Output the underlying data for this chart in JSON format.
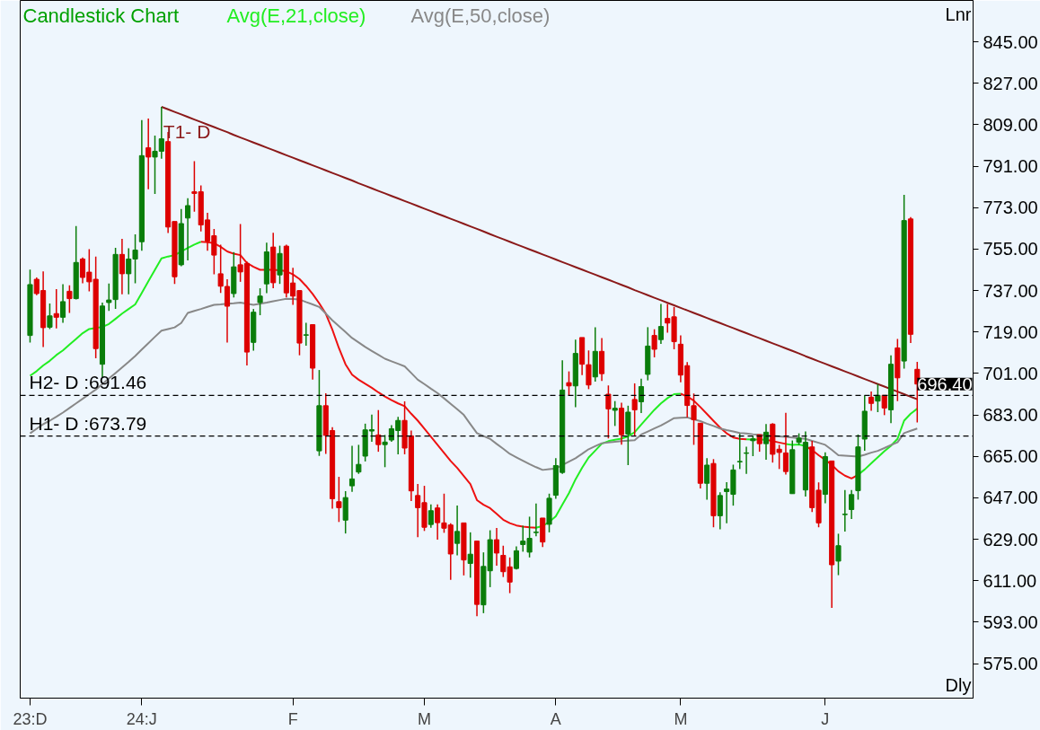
{
  "chart_data": {
    "type": "candlestick",
    "title": "Candlestick Chart",
    "legend": "top left",
    "categories": [
      "23:D",
      null,
      null,
      null,
      null,
      null,
      null,
      null,
      null,
      null,
      null,
      null,
      null,
      null,
      null,
      null,
      null,
      "24:J",
      null,
      null,
      null,
      null,
      null,
      null,
      null,
      null,
      null,
      null,
      null,
      null,
      null,
      null,
      null,
      null,
      null,
      null,
      null,
      null,
      null,
      null,
      "F",
      null,
      null,
      null,
      null,
      null,
      null,
      null,
      null,
      null,
      null,
      null,
      null,
      null,
      null,
      null,
      null,
      null,
      null,
      null,
      "M",
      null,
      null,
      null,
      null,
      null,
      null,
      null,
      null,
      null,
      null,
      null,
      null,
      null,
      null,
      null,
      null,
      null,
      null,
      null,
      "A",
      null,
      null,
      null,
      null,
      null,
      null,
      null,
      null,
      null,
      null,
      null,
      null,
      null,
      null,
      null,
      null,
      null,
      null,
      "M",
      null,
      null,
      null,
      null,
      null,
      null,
      null,
      null,
      null,
      null,
      null,
      null,
      null,
      null,
      null,
      null,
      null,
      null,
      null,
      null,
      null,
      "J",
      null,
      null,
      null,
      null,
      null,
      null,
      null,
      null,
      null,
      null,
      null,
      null,
      null,
      null
    ],
    "ohlc": [
      [
        717.5,
        746.1,
        714.4,
        739.6
      ],
      [
        741.9,
        742.7,
        735,
        735.7
      ],
      [
        737,
        745.3,
        712.5,
        720.9
      ],
      [
        721.1,
        731.4,
        720.3,
        726
      ],
      [
        727,
        737.6,
        720.6,
        725.4
      ],
      [
        725.4,
        739.8,
        723,
        732.2
      ],
      [
        736.7,
        739.3,
        727.3,
        733.5
      ],
      [
        733.5,
        765,
        733.1,
        749.2
      ],
      [
        750.7,
        751.4,
        740.2,
        742.7
      ],
      [
        745,
        755,
        736.7,
        740.8
      ],
      [
        741.9,
        751.8,
        707.6,
        711.8
      ],
      [
        705,
        731.8,
        699.4,
        730.3
      ],
      [
        731.8,
        740.1,
        728.2,
        732.9
      ],
      [
        733.1,
        755.6,
        729,
        752.7
      ],
      [
        752.7,
        759.5,
        735.4,
        744.3
      ],
      [
        744.3,
        755.4,
        735.4,
        750.7
      ],
      [
        750.7,
        761.4,
        740.2,
        754.6
      ],
      [
        758.2,
        811,
        754.3,
        795.6
      ],
      [
        799,
        811.7,
        781,
        795
      ],
      [
        795,
        804.3,
        779,
        797.5
      ],
      [
        797.5,
        816.8,
        794.3,
        802.9
      ],
      [
        801.7,
        805.9,
        762,
        764.6
      ],
      [
        767,
        767,
        739.9,
        743
      ],
      [
        748.2,
        772.4,
        747.6,
        766.1
      ],
      [
        768.5,
        777.1,
        750.1,
        773.9
      ],
      [
        779.9,
        793.2,
        771.3,
        779.2
      ],
      [
        779.9,
        782.7,
        762.7,
        765.5
      ],
      [
        767.7,
        770.8,
        754.3,
        758.5
      ],
      [
        760.8,
        763.8,
        744.1,
        752.4
      ],
      [
        744.3,
        756.9,
        736,
        738.9
      ],
      [
        738.8,
        741.9,
        714.4,
        730.2
      ],
      [
        735.7,
        753.7,
        734,
        747.3
      ],
      [
        748.2,
        765.9,
        740.8,
        745.1
      ],
      [
        748.8,
        749.6,
        704.5,
        710.3
      ],
      [
        714.5,
        729,
        710.9,
        727.6
      ],
      [
        731.8,
        738,
        726.3,
        734.6
      ],
      [
        739.9,
        757.8,
        735.9,
        753.8
      ],
      [
        755.9,
        762.1,
        738,
        740.4
      ],
      [
        743.8,
        756.5,
        739.9,
        753.1
      ],
      [
        756.3,
        756.9,
        734,
        736
      ],
      [
        740.3,
        746.9,
        730.8,
        734.6
      ],
      [
        737,
        737,
        708.9,
        714.2
      ],
      [
        717.6,
        723,
        713.1,
        717.8
      ],
      [
        722.2,
        722.2,
        698.3,
        703.3
      ],
      [
        667.4,
        702.5,
        665.2,
        687
      ],
      [
        687,
        692.4,
        666.1,
        674.1
      ],
      [
        676.2,
        677.7,
        642.3,
        646.6
      ],
      [
        645.3,
        656.1,
        636.5,
        642.7
      ],
      [
        637.3,
        649.9,
        631.5,
        647.1
      ],
      [
        652.2,
        669.6,
        649.6,
        655.2
      ],
      [
        658.2,
        670,
        657.4,
        661.5
      ],
      [
        665.1,
        679.2,
        662.8,
        676.5
      ],
      [
        676,
        683.1,
        671.3,
        676.6
      ],
      [
        674.3,
        685.1,
        667,
        670.1
      ],
      [
        670.1,
        674.3,
        660.3,
        671.2
      ],
      [
        672.1,
        678.5,
        671.3,
        677
      ],
      [
        676.2,
        682.2,
        665.9,
        680.6
      ],
      [
        680.6,
        688.9,
        665.9,
        668.6
      ],
      [
        673.9,
        676.2,
        645.6,
        650
      ],
      [
        648,
        653,
        629.9,
        642.7
      ],
      [
        644.9,
        652.2,
        632.6,
        634.2
      ],
      [
        635.4,
        644.1,
        634,
        641.4
      ],
      [
        642.6,
        644.1,
        628.8,
        636.2
      ],
      [
        636.1,
        648.8,
        631.8,
        633.8
      ],
      [
        635.2,
        635.9,
        611.4,
        622.6
      ],
      [
        627.2,
        643.6,
        622,
        632.4
      ],
      [
        636.1,
        636.1,
        613.3,
        620
      ],
      [
        618.5,
        632,
        612.3,
        622.5
      ],
      [
        628.2,
        628.2,
        595.6,
        600.7
      ],
      [
        600.5,
        623.3,
        596.9,
        617.2
      ],
      [
        615.3,
        632.9,
        608.2,
        628.8
      ],
      [
        628.8,
        633.9,
        617.5,
        623
      ],
      [
        622,
        626.2,
        612.6,
        614.9
      ],
      [
        617,
        621.1,
        605.6,
        610.4
      ],
      [
        616.3,
        625.9,
        615.9,
        624
      ],
      [
        626.7,
        634.9,
        623.6,
        628.2
      ],
      [
        623.4,
        638.8,
        621.1,
        629.4
      ],
      [
        631.9,
        644.5,
        630.3,
        632.1
      ],
      [
        638.2,
        638.2,
        625.6,
        627.8
      ],
      [
        635.5,
        648.8,
        632,
        646.8
      ],
      [
        648.1,
        664.2,
        646.6,
        661
      ],
      [
        658,
        706.7,
        657.4,
        693.8
      ],
      [
        697,
        701.9,
        691.6,
        695.6
      ],
      [
        695.6,
        715.7,
        686.3,
        709.7
      ],
      [
        716.6,
        716.6,
        700.3,
        705
      ],
      [
        704.8,
        711,
        694.2,
        696
      ],
      [
        699.5,
        721.1,
        697.5,
        710.6
      ],
      [
        710.6,
        716.4,
        697.8,
        700.9
      ],
      [
        692,
        695.8,
        672.8,
        685.6
      ],
      [
        685,
        689,
        678.2,
        685.9
      ],
      [
        685.9,
        688.3,
        670.1,
        674.4
      ],
      [
        674.7,
        687,
        661.2,
        684.2
      ],
      [
        689.7,
        696.7,
        673.7,
        685.2
      ],
      [
        688.7,
        698.7,
        683.8,
        695.3
      ],
      [
        700.6,
        721.1,
        698,
        712.9
      ],
      [
        717.5,
        720.2,
        708,
        711.5
      ],
      [
        715.7,
        731.2,
        713.8,
        721.4
      ],
      [
        724.9,
        731.2,
        718.7,
        722.9
      ],
      [
        725.6,
        729.9,
        711.5,
        714.8
      ],
      [
        713.7,
        717.5,
        697.2,
        700.3
      ],
      [
        704.4,
        705.9,
        682,
        687.1
      ],
      [
        687,
        692.3,
        670,
        680.9
      ],
      [
        679.4,
        679.4,
        651.1,
        653.3
      ],
      [
        653.3,
        664.2,
        646.2,
        661.2
      ],
      [
        661.9,
        663.8,
        634.2,
        639.2
      ],
      [
        639.2,
        649.4,
        633.3,
        648
      ],
      [
        649.7,
        653.8,
        635.9,
        650.8
      ],
      [
        648.5,
        661.4,
        643.6,
        659.1
      ],
      [
        662.6,
        674.8,
        659.5,
        662.8
      ],
      [
        666.3,
        669.2,
        657.4,
        666.5
      ],
      [
        671.8,
        673.9,
        665.1,
        672.6
      ],
      [
        674.4,
        674.4,
        667,
        670.5
      ],
      [
        670.5,
        679,
        663.5,
        675.5
      ],
      [
        679,
        679.4,
        662.3,
        665.9
      ],
      [
        668.1,
        670,
        659.5,
        666.7
      ],
      [
        666.5,
        683.9,
        657.1,
        658.4
      ],
      [
        648.8,
        671.9,
        648.8,
        667.9
      ],
      [
        671.1,
        675,
        670,
        672.9
      ],
      [
        650.4,
        675.8,
        647.5,
        671.1
      ],
      [
        669.1,
        671.7,
        640.8,
        642.7
      ],
      [
        650.3,
        653.7,
        634.2,
        636.1
      ],
      [
        648.5,
        666.8,
        644.6,
        664.9
      ],
      [
        663,
        663,
        599.2,
        617.9
      ],
      [
        619.5,
        631.4,
        613.4,
        626.2
      ],
      [
        639.7,
        650.4,
        632.3,
        639.9
      ],
      [
        641.9,
        650.4,
        637.8,
        648.4
      ],
      [
        650.1,
        674.5,
        646.2,
        669.1
      ],
      [
        672.5,
        691.5,
        667.4,
        684.6
      ],
      [
        690.7,
        693.2,
        684.8,
        688
      ],
      [
        689,
        696.4,
        684.2,
        691.5
      ],
      [
        691.5,
        691.5,
        682.9,
        686
      ],
      [
        685.2,
        708.9,
        679.4,
        705
      ],
      [
        712.1,
        716,
        689,
        699.1
      ],
      [
        706.4,
        778.6,
        703.1,
        767.4
      ],
      [
        768.1,
        768.9,
        714.2,
        718
      ],
      [
        702.8,
        706,
        679.7,
        696.4
      ]
    ],
    "series": [
      {
        "name": "Avg(E,21,close)",
        "type": "line",
        "color": "#22ee22",
        "values": [
          700,
          702,
          704.5,
          706.5,
          709,
          711,
          713.5,
          716,
          718.5,
          720.3,
          720.8,
          721.2,
          722.5,
          724.7,
          727,
          729,
          731,
          736,
          741,
          746,
          751,
          751.8,
          752.4,
          754,
          755.5,
          757,
          758.2,
          null,
          null,
          null,
          null,
          null,
          null,
          null,
          null,
          null,
          null,
          null,
          null,
          null,
          null,
          null,
          null,
          null,
          null,
          null,
          null,
          null,
          null,
          null,
          null,
          null,
          null,
          null,
          null,
          null,
          null,
          null,
          null,
          null,
          null,
          null,
          null,
          null,
          null,
          null,
          null,
          null,
          null,
          null,
          null,
          null,
          null,
          null,
          null,
          null,
          null,
          634,
          634.8,
          636.5,
          639,
          644,
          649,
          655,
          660,
          664.5,
          667.5,
          670.5,
          671.6,
          672.2,
          672.7,
          673.7,
          675.5,
          678.8,
          682,
          685.2,
          688,
          690.3,
          692,
          692.2,
          null,
          null,
          null,
          null,
          null,
          null,
          null,
          null,
          null,
          672.4,
          672.3,
          672.3,
          672.2,
          null,
          null,
          670.4,
          670,
          670.2,
          669.5,
          null,
          null,
          null,
          null,
          null,
          null,
          null,
          657,
          659.3,
          662,
          664.6,
          667.2,
          669.6,
          672.6,
          680.5,
          683.5,
          685.7
        ]
      },
      {
        "type": "line",
        "color": "#ee1111",
        "values": [
          null,
          null,
          null,
          null,
          null,
          null,
          null,
          null,
          null,
          null,
          null,
          null,
          null,
          null,
          null,
          null,
          null,
          null,
          null,
          null,
          null,
          null,
          null,
          null,
          null,
          null,
          758.2,
          758,
          757.6,
          756,
          754,
          753,
          752.4,
          749,
          747.3,
          746,
          746,
          746,
          745.8,
          745.4,
          744,
          742,
          739,
          735.5,
          731.5,
          727,
          720,
          712,
          705,
          700.5,
          698.3,
          696.5,
          694.8,
          692.8,
          691,
          689.4,
          688,
          686.8,
          683.5,
          680.5,
          677,
          673.5,
          670,
          666.5,
          663,
          660,
          656.5,
          653,
          646,
          644,
          642.5,
          640,
          637.5,
          636,
          635,
          634.5,
          634.2,
          634,
          null,
          null,
          null,
          null,
          null,
          null,
          null,
          null,
          null,
          null,
          null,
          null,
          null,
          null,
          null,
          null,
          null,
          null,
          null,
          null,
          null,
          692.2,
          691,
          689.2,
          686.4,
          683.4,
          680.4,
          677.5,
          675,
          673.2,
          672.6,
          672.4,
          null,
          null,
          672.2,
          671.6,
          671,
          670.4,
          null,
          null,
          669.5,
          667.7,
          665.5,
          663.5,
          661.3,
          658.5,
          656.6,
          655.4,
          657,
          null,
          null,
          null,
          null,
          null,
          null,
          null,
          null,
          null
        ]
      },
      {
        "name": "Avg(E,50,close)",
        "type": "line",
        "color": "#888888",
        "values": [
          675,
          677,
          679,
          680.5,
          682.2,
          684,
          686,
          688,
          690,
          692,
          694,
          696.4,
          698.8,
          701.2,
          703.6,
          706,
          708.6,
          711.4,
          714.1,
          716.9,
          719.6,
          720.3,
          721,
          722.9,
          727.3,
          728.2,
          729,
          729.9,
          730.8,
          731,
          731.3,
          731.5,
          731.8,
          731.3,
          730.8,
          731.3,
          731.8,
          732.4,
          732.9,
          733.4,
          733.3,
          733.1,
          732,
          731,
          729.9,
          727,
          724.1,
          721.5,
          719,
          716.4,
          714.5,
          712.5,
          710.8,
          709.1,
          707.4,
          706.3,
          705.2,
          704.1,
          701.2,
          698.3,
          696.4,
          694.4,
          692.5,
          690.2,
          687.8,
          685.5,
          683,
          679,
          675.1,
          673.8,
          672.6,
          670.4,
          668.3,
          666.1,
          664.6,
          663.1,
          661.6,
          660.3,
          659.1,
          659.4,
          659.7,
          661.2,
          662.7,
          664.2,
          666.1,
          668.1,
          669.4,
          670.7,
          671,
          671.3,
          671.6,
          671.8,
          672,
          674.5,
          675.8,
          677.1,
          678.4,
          680,
          681.6,
          681.8,
          681.9,
          681.1,
          680.3,
          679.2,
          678.2,
          677.1,
          676.4,
          675.8,
          675.1,
          674.9,
          674.6,
          674.4,
          674.1,
          673.9,
          673.7,
          673.5,
          673.2,
          672.9,
          672.6,
          671.7,
          670.9,
          670,
          667.8,
          665.5,
          665.3,
          665.1,
          664.9,
          665.7,
          666.6,
          667.4,
          668.6,
          669.9,
          671.1,
          675.1,
          676.1,
          677.1
        ]
      },
      {
        "name": "T1- D",
        "type": "line",
        "color": "#8b1a1a",
        "values": [
          null,
          null,
          null,
          null,
          null,
          null,
          null,
          null,
          null,
          null,
          null,
          null,
          null,
          null,
          null,
          null,
          null,
          null,
          null,
          null,
          816.8,
          815.7,
          814.6,
          813.5,
          812.4,
          811.3,
          810.2,
          809.1,
          808,
          806.9,
          805.8,
          804.6,
          803.5,
          802.4,
          801.3,
          800.2,
          799.1,
          798,
          796.9,
          795.8,
          794.7,
          793.6,
          792.5,
          791.4,
          790.3,
          789.2,
          788.1,
          787,
          785.9,
          784.8,
          783.6,
          782.5,
          781.4,
          780.3,
          779.2,
          778.1,
          777,
          775.9,
          774.8,
          773.7,
          772.6,
          771.5,
          770.4,
          769.3,
          768.2,
          767.1,
          766,
          764.9,
          763.8,
          762.7,
          761.5,
          760.4,
          759.3,
          758.2,
          757.1,
          756,
          754.9,
          753.8,
          752.7,
          751.6,
          750.5,
          749.4,
          748.3,
          747.2,
          746.1,
          745,
          743.9,
          742.8,
          741.7,
          740.6,
          739.5,
          738.4,
          737.2,
          736.1,
          735,
          733.9,
          732.8,
          731.7,
          730.6,
          729.5,
          728.4,
          727.3,
          726.2,
          725.1,
          724,
          722.9,
          721.8,
          720.7,
          719.6,
          718.5,
          717.4,
          716.3,
          715.2,
          714.1,
          713,
          711.9,
          710.8,
          709.7,
          708.5,
          707.4,
          706.3,
          705.2,
          704.1,
          703,
          701.9,
          700.8,
          699.7,
          698.6,
          697.5,
          696.4,
          695.3,
          694.2,
          693.1,
          692,
          690.9,
          689.8
        ]
      }
    ],
    "ref_lines": [
      {
        "axis": "y",
        "value": 691.46,
        "label": "H2- D :691.46",
        "color": "#000000",
        "line_style": "dashed"
      },
      {
        "axis": "y",
        "value": 673.79,
        "label": "H1- D :673.79",
        "color": "#000000",
        "line_style": "dashed"
      }
    ],
    "annotations": [
      "Lnr",
      "Dly",
      "696.40"
    ],
    "ylim": [
      560,
      863
    ],
    "yticks": [
      {
        "value": 575,
        "label": "575.00"
      },
      {
        "value": 593,
        "label": "593.00"
      },
      {
        "value": 611,
        "label": "611.00"
      },
      {
        "value": 629,
        "label": "629.00"
      },
      {
        "value": 647,
        "label": "647.00"
      },
      {
        "value": 665,
        "label": "665.00"
      },
      {
        "value": 683,
        "label": "683.00"
      },
      {
        "value": 701,
        "label": "701.00"
      },
      {
        "value": 719,
        "label": "719.00"
      },
      {
        "value": 737,
        "label": "737.00"
      },
      {
        "value": 755,
        "label": "755.00"
      },
      {
        "value": 773,
        "label": "773.00"
      },
      {
        "value": 791,
        "label": "791.00"
      },
      {
        "value": 809,
        "label": "809.00"
      },
      {
        "value": 827,
        "label": "827.00"
      },
      {
        "value": 845,
        "label": "845.00"
      }
    ]
  }
}
